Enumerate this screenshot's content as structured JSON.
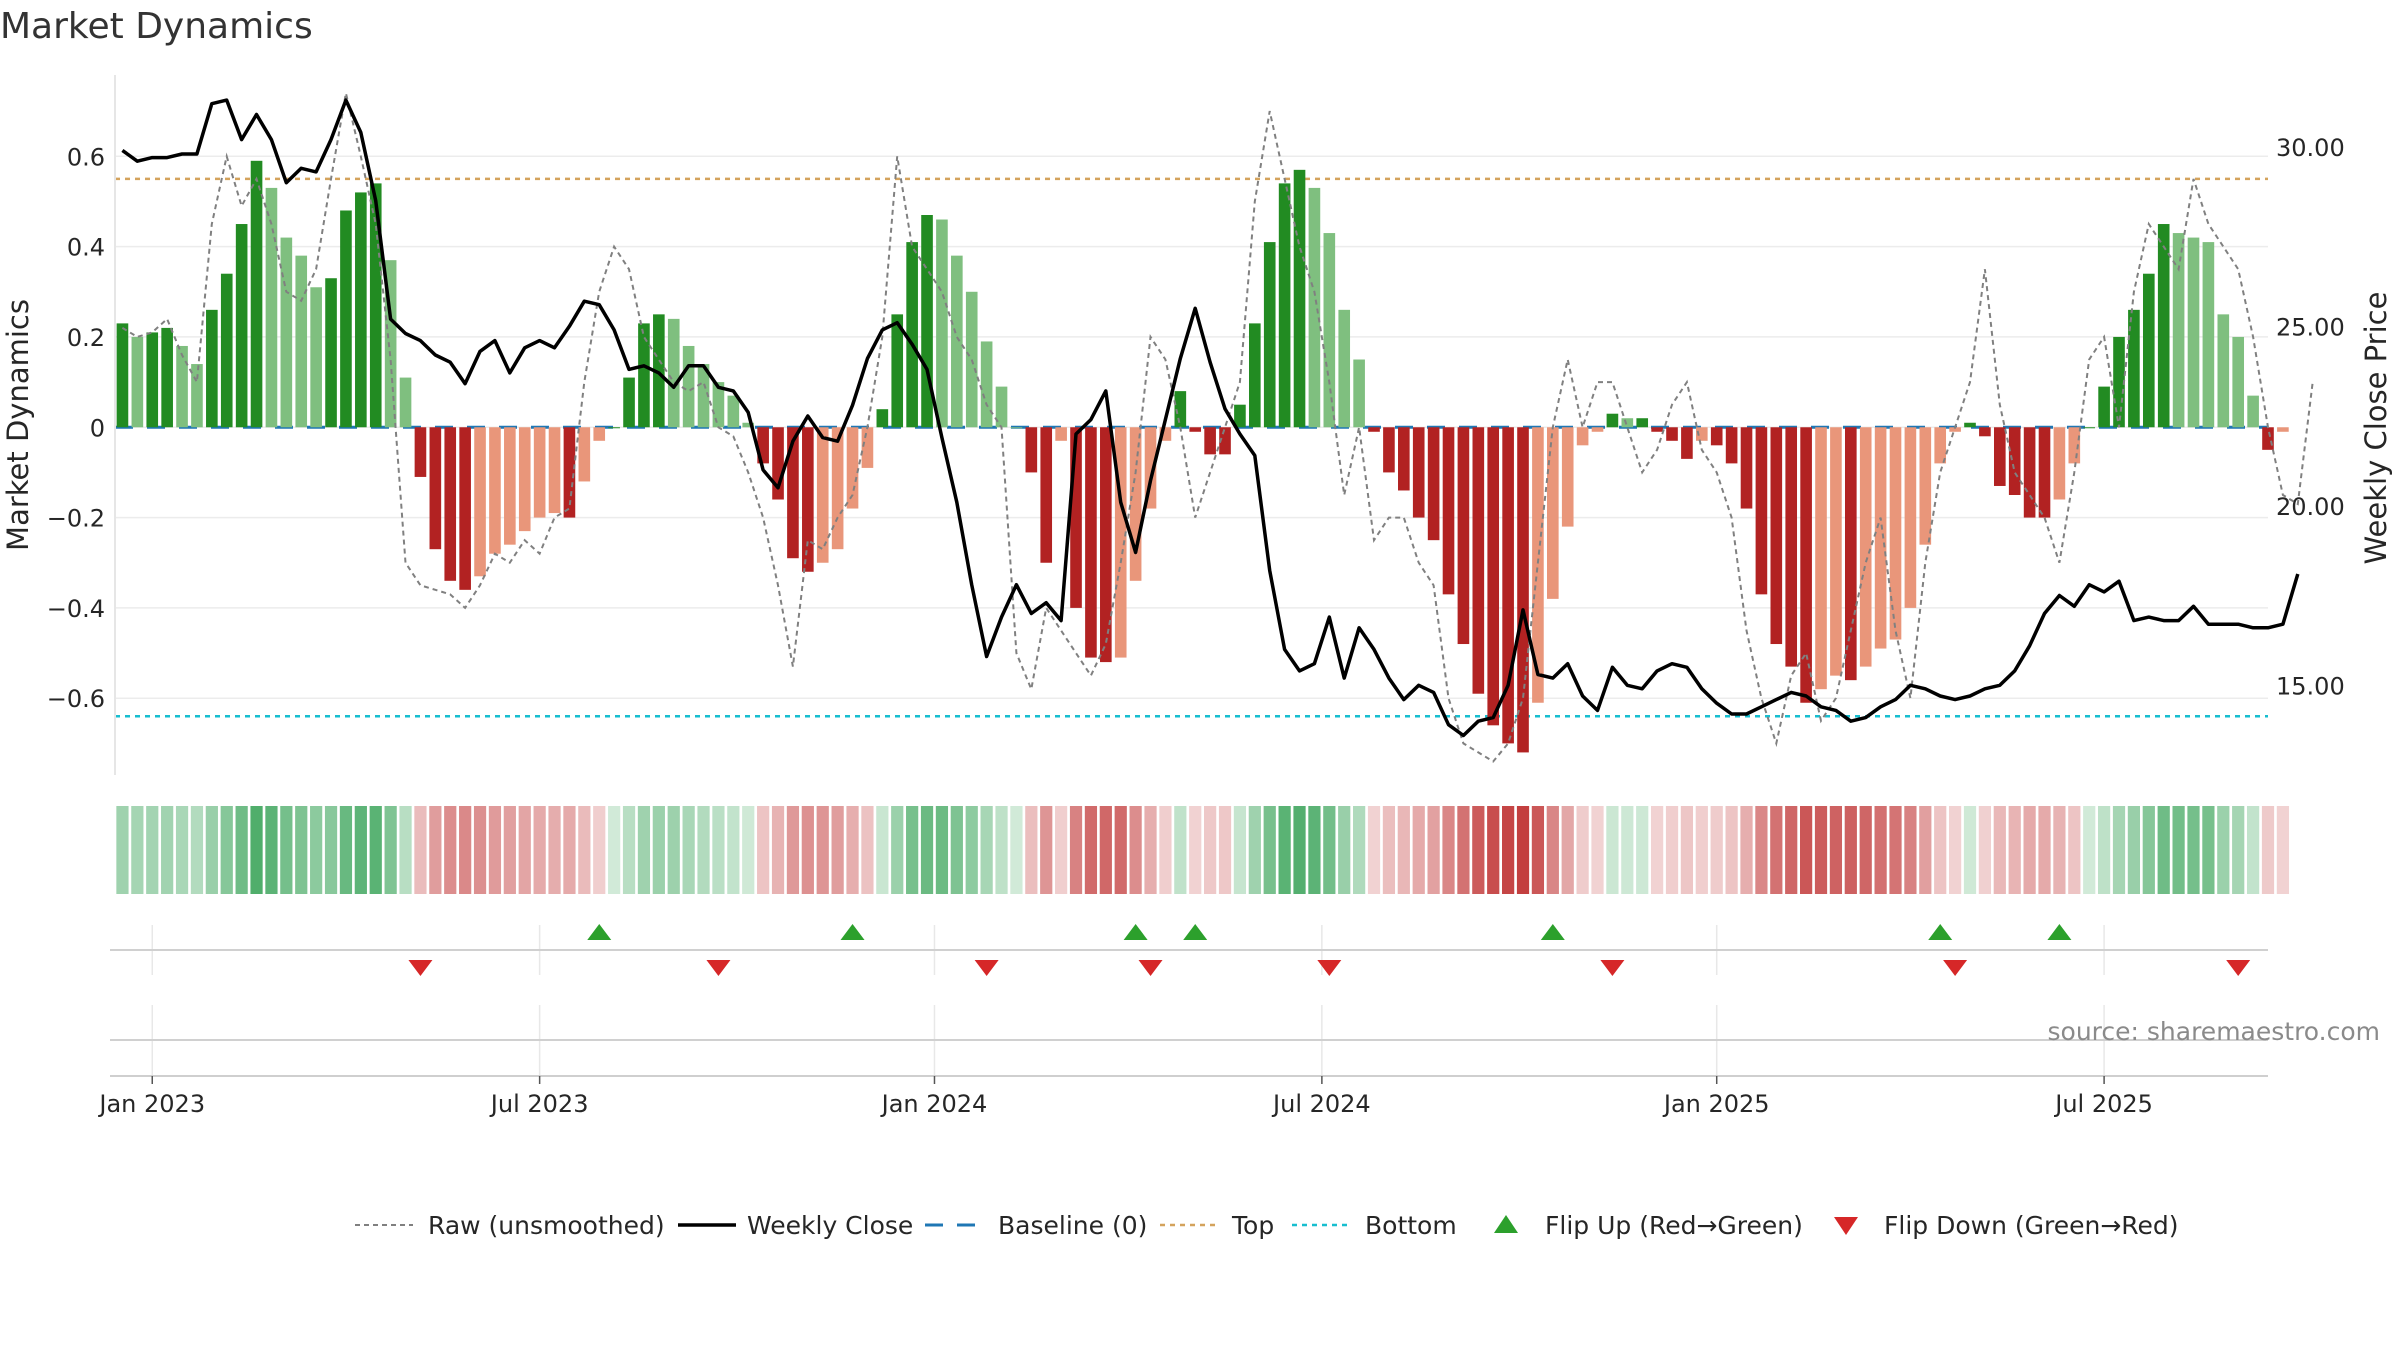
{
  "chart_data": {
    "title": "Market Dynamics",
    "type": "bar",
    "y_left": {
      "label": "Market Dynamics",
      "range": [
        -0.77,
        0.78
      ],
      "ticks": [
        "0.6",
        "0.4",
        "0.2",
        "0",
        "−0.2",
        "−0.4",
        "−0.6"
      ],
      "tick_values": [
        0.6,
        0.4,
        0.2,
        0,
        -0.2,
        -0.4,
        -0.6
      ]
    },
    "y_right": {
      "label": "Weekly Close Price",
      "range": [
        12.5,
        32.0
      ],
      "ticks": [
        "30.00",
        "25.00",
        "20.00",
        "15.00"
      ],
      "tick_values": [
        30,
        25,
        20,
        15
      ]
    },
    "x_ticks": [
      {
        "label": "Jan 2023",
        "week": 3
      },
      {
        "label": "Jul 2023",
        "week": 29
      },
      {
        "label": "Jan 2024",
        "week": 55.5
      },
      {
        "label": "Jul 2024",
        "week": 81.5
      },
      {
        "label": "Jan 2025",
        "week": 108
      },
      {
        "label": "Jul 2025",
        "week": 134
      }
    ],
    "week_range": [
      0.5,
      145
    ],
    "top_threshold": 0.55,
    "bottom_threshold": -0.64,
    "baseline": 0,
    "dynamics": [
      0.23,
      0.2,
      0.21,
      0.22,
      0.18,
      0.14,
      0.26,
      0.34,
      0.45,
      0.59,
      0.53,
      0.42,
      0.38,
      0.31,
      0.33,
      0.48,
      0.52,
      0.54,
      0.37,
      0.11,
      -0.11,
      -0.27,
      -0.34,
      -0.36,
      -0.33,
      -0.28,
      -0.26,
      -0.23,
      -0.2,
      -0.19,
      -0.2,
      -0.12,
      -0.03,
      0.0,
      0.11,
      0.23,
      0.25,
      0.24,
      0.18,
      0.14,
      0.1,
      0.07,
      0.01,
      -0.08,
      -0.16,
      -0.29,
      -0.32,
      -0.3,
      -0.27,
      -0.18,
      -0.09,
      0.04,
      0.25,
      0.41,
      0.47,
      0.46,
      0.38,
      0.3,
      0.19,
      0.09,
      0.0,
      -0.1,
      -0.3,
      -0.03,
      -0.4,
      -0.51,
      -0.52,
      -0.51,
      -0.34,
      -0.18,
      -0.03,
      0.08,
      -0.01,
      -0.06,
      -0.06,
      0.05,
      0.23,
      0.41,
      0.54,
      0.57,
      0.53,
      0.43,
      0.26,
      0.15,
      -0.01,
      -0.1,
      -0.14,
      -0.2,
      -0.25,
      -0.37,
      -0.48,
      -0.59,
      -0.66,
      -0.7,
      -0.72,
      -0.61,
      -0.38,
      -0.22,
      -0.04,
      -0.01,
      0.03,
      0.02,
      0.02,
      -0.01,
      -0.03,
      -0.07,
      -0.03,
      -0.04,
      -0.08,
      -0.18,
      -0.37,
      -0.48,
      -0.53,
      -0.61,
      -0.58,
      -0.55,
      -0.56,
      -0.53,
      -0.49,
      -0.47,
      -0.4,
      -0.26,
      -0.08,
      -0.01,
      0.01,
      -0.02,
      -0.13,
      -0.15,
      -0.2,
      -0.2,
      -0.16,
      -0.08,
      0.0,
      0.09,
      0.2,
      0.26,
      0.34,
      0.45,
      0.43,
      0.42,
      0.41,
      0.25,
      0.2,
      0.07,
      -0.05,
      -0.01
    ],
    "raw": [
      0.22,
      0.2,
      0.21,
      0.24,
      0.16,
      0.1,
      0.45,
      0.6,
      0.49,
      0.55,
      0.45,
      0.3,
      0.28,
      0.35,
      0.55,
      0.74,
      0.6,
      0.45,
      0.15,
      -0.3,
      -0.35,
      -0.36,
      -0.37,
      -0.4,
      -0.35,
      -0.28,
      -0.3,
      -0.25,
      -0.28,
      -0.2,
      -0.18,
      0.1,
      0.3,
      0.4,
      0.35,
      0.2,
      0.15,
      0.1,
      0.08,
      0.1,
      0.0,
      -0.02,
      -0.1,
      -0.2,
      -0.35,
      -0.53,
      -0.25,
      -0.27,
      -0.2,
      -0.15,
      0.0,
      0.2,
      0.6,
      0.4,
      0.35,
      0.3,
      0.2,
      0.15,
      0.05,
      0.0,
      -0.5,
      -0.58,
      -0.4,
      -0.45,
      -0.5,
      -0.55,
      -0.48,
      -0.3,
      -0.1,
      0.2,
      0.15,
      0.0,
      -0.2,
      -0.1,
      0.0,
      0.1,
      0.5,
      0.7,
      0.55,
      0.4,
      0.3,
      0.1,
      -0.15,
      0.0,
      -0.25,
      -0.2,
      -0.2,
      -0.3,
      -0.35,
      -0.6,
      -0.7,
      -0.72,
      -0.74,
      -0.7,
      -0.6,
      -0.3,
      0.0,
      0.15,
      0.0,
      0.1,
      0.1,
      0.0,
      -0.1,
      -0.05,
      0.05,
      0.1,
      -0.05,
      -0.1,
      -0.2,
      -0.45,
      -0.6,
      -0.7,
      -0.55,
      -0.5,
      -0.65,
      -0.6,
      -0.45,
      -0.3,
      -0.2,
      -0.45,
      -0.6,
      -0.3,
      -0.1,
      0.0,
      0.1,
      0.35,
      0.05,
      -0.1,
      -0.15,
      -0.2,
      -0.3,
      -0.1,
      0.15,
      0.2,
      0.0,
      0.3,
      0.45,
      0.4,
      0.35,
      0.55,
      0.45,
      0.4,
      0.35,
      0.2,
      0.0,
      -0.15,
      -0.17,
      0.1
    ],
    "close": [
      29.9,
      29.6,
      29.7,
      29.7,
      29.8,
      29.8,
      31.2,
      31.3,
      30.2,
      30.9,
      30.2,
      29.0,
      29.4,
      29.3,
      30.2,
      31.3,
      30.4,
      28.5,
      25.2,
      24.8,
      24.6,
      24.2,
      24.0,
      23.4,
      24.3,
      24.6,
      23.7,
      24.4,
      24.6,
      24.4,
      25.0,
      25.7,
      25.6,
      24.9,
      23.8,
      23.9,
      23.7,
      23.3,
      23.9,
      23.9,
      23.3,
      23.2,
      22.6,
      21.0,
      20.5,
      21.8,
      22.5,
      21.9,
      21.8,
      22.8,
      24.1,
      24.9,
      25.1,
      24.5,
      23.8,
      21.9,
      20.1,
      17.8,
      15.8,
      16.9,
      17.8,
      17.0,
      17.3,
      16.8,
      22.0,
      22.4,
      23.2,
      20.1,
      18.7,
      20.7,
      22.4,
      24.1,
      25.5,
      24.0,
      22.7,
      22.0,
      21.4,
      18.2,
      16.0,
      15.4,
      15.6,
      16.9,
      15.2,
      16.6,
      16.0,
      15.2,
      14.6,
      15.0,
      14.8,
      13.9,
      13.6,
      14.0,
      14.1,
      15.0,
      17.1,
      15.3,
      15.2,
      15.6,
      14.7,
      14.3,
      15.5,
      15.0,
      14.9,
      15.4,
      15.6,
      15.5,
      14.9,
      14.5,
      14.2,
      14.2,
      14.4,
      14.6,
      14.8,
      14.7,
      14.4,
      14.3,
      14.0,
      14.1,
      14.4,
      14.6,
      15.0,
      14.9,
      14.7,
      14.6,
      14.7,
      14.9,
      15.0,
      15.4,
      16.1,
      17.0,
      17.5,
      17.2,
      17.8,
      17.6,
      17.9,
      16.8,
      16.9,
      16.8,
      16.8,
      17.2,
      16.7,
      16.7,
      16.7,
      16.6,
      16.6,
      16.7,
      18.1
    ],
    "flip_up_weeks": [
      33,
      50,
      69,
      73,
      97,
      123,
      131
    ],
    "flip_down_weeks": [
      21,
      41,
      59,
      70,
      82,
      101,
      124,
      143
    ],
    "colors": {
      "strong_green": "#228b22",
      "light_green": "#7fbf7f",
      "strong_red": "#b22222",
      "light_red": "#e9967a",
      "raw_line": "#808080",
      "close_line": "#000000",
      "baseline": "#1f77b4",
      "top": "#d4a35c",
      "bottom": "#17becf",
      "flip_up": "#2ca02c",
      "flip_down": "#d62728"
    },
    "legend": [
      {
        "key": "raw",
        "label": "Raw (unsmoothed)"
      },
      {
        "key": "close",
        "label": "Weekly Close"
      },
      {
        "key": "baseline",
        "label": "Baseline (0)"
      },
      {
        "key": "top",
        "label": "Top"
      },
      {
        "key": "bottom",
        "label": "Bottom"
      },
      {
        "key": "flip_up",
        "label": "Flip Up (Red→Green)"
      },
      {
        "key": "flip_down",
        "label": "Flip Down (Green→Red)"
      }
    ],
    "source": "source: sharemaestro.com"
  }
}
